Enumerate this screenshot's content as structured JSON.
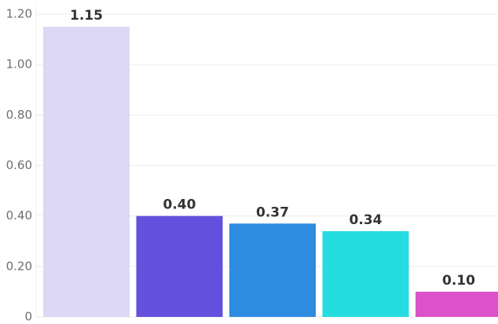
{
  "chart_data": {
    "type": "bar",
    "categories": [
      "",
      "",
      "",
      "",
      ""
    ],
    "values": [
      1.15,
      0.4,
      0.37,
      0.34,
      0.1
    ],
    "value_labels": [
      "1.15",
      "0.40",
      "0.37",
      "0.34",
      "0.10"
    ],
    "colors": [
      "#dcd8f5",
      "#6350dc",
      "#2d8be0",
      "#25dce0",
      "#dc52c8"
    ],
    "title": "",
    "xlabel": "",
    "ylabel": "",
    "ylim": [
      0,
      1.2
    ],
    "yticks": [
      0,
      0.2,
      0.4,
      0.6,
      0.8,
      1.0,
      1.2
    ],
    "ytick_labels": [
      "0",
      "0.20",
      "0.40",
      "0.60",
      "0.80",
      "1.00",
      "1.20"
    ],
    "grid": true,
    "legend": "none"
  }
}
